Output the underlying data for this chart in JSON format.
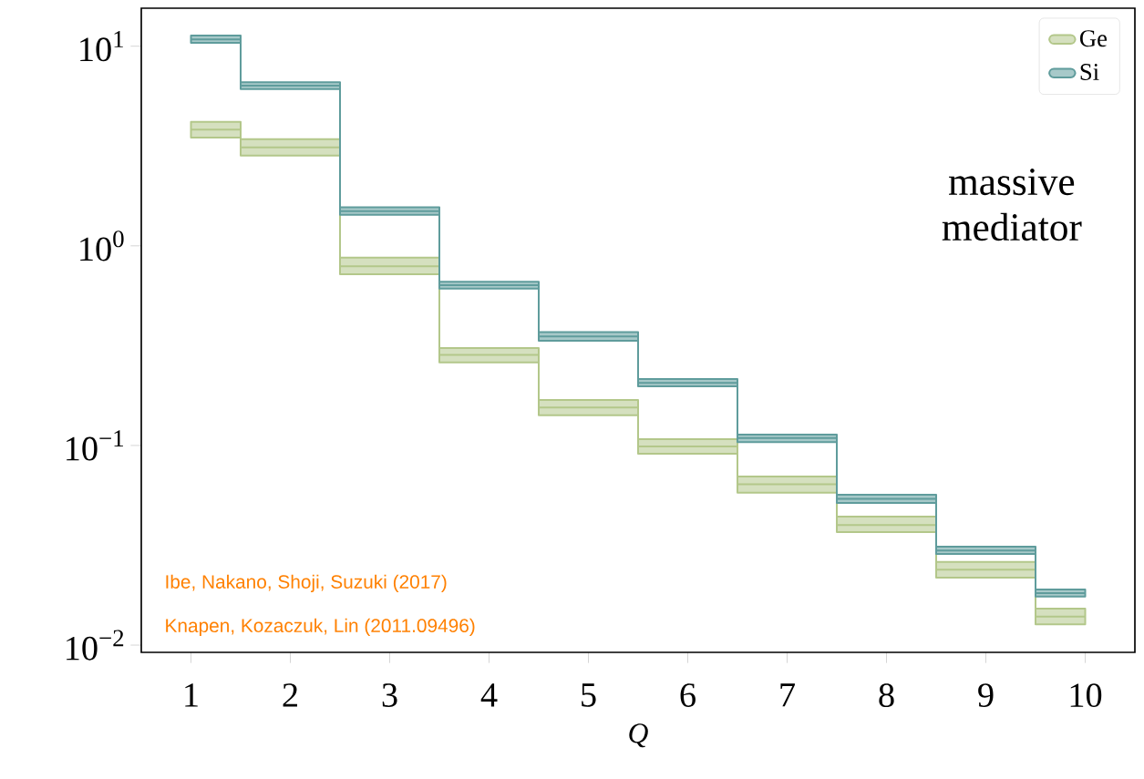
{
  "chart_data": {
    "type": "step",
    "xlabel": "Q",
    "log": "y",
    "legend": "top right",
    "x": [
      1,
      2,
      3,
      4,
      5,
      6,
      7,
      8,
      9,
      10
    ],
    "xlim": [
      0.5,
      10.5
    ],
    "xticks": [
      1,
      2,
      3,
      4,
      5,
      6,
      7,
      8,
      9,
      10
    ],
    "ylim": [
      0.0092,
      15.5
    ],
    "yticks": [
      {
        "value": 0.01,
        "label": "10$^{−2}$"
      },
      {
        "value": 0.1,
        "label": "10$^{−1}$"
      },
      {
        "value": 1,
        "label": "10$^{0}$"
      },
      {
        "value": 10,
        "label": "10$^{1}$"
      }
    ],
    "series": [
      {
        "name": "Ge",
        "color": "#b3c78a",
        "values": [
          3.82,
          3.11,
          0.79,
          0.284,
          0.155,
          0.099,
          0.064,
          0.04,
          0.0239,
          0.0139
        ],
        "lower": [
          3.49,
          2.83,
          0.721,
          0.261,
          0.1416,
          0.091,
          0.058,
          0.0368,
          0.0218,
          0.0127
        ],
        "upper": [
          4.18,
          3.42,
          0.873,
          0.308,
          0.169,
          0.1076,
          0.07,
          0.044,
          0.0261,
          0.01525
        ]
      },
      {
        "name": "Si",
        "color": "#5f9c9c",
        "values": [
          10.8,
          6.35,
          1.49,
          0.635,
          0.352,
          0.206,
          0.109,
          0.054,
          0.0298,
          0.0182
        ],
        "lower": [
          10.4,
          6.1,
          1.43,
          0.61,
          0.335,
          0.198,
          0.104,
          0.0515,
          0.0286,
          0.0175
        ],
        "upper": [
          11.3,
          6.6,
          1.56,
          0.66,
          0.37,
          0.215,
          0.1135,
          0.0566,
          0.0311,
          0.019
        ]
      }
    ],
    "annotations": [
      "massive mediator",
      "Ibe, Nakano, Shoji, Suzuki (2017)",
      "Knapen, Kozaczuk, Lin (2011.09496)"
    ]
  }
}
